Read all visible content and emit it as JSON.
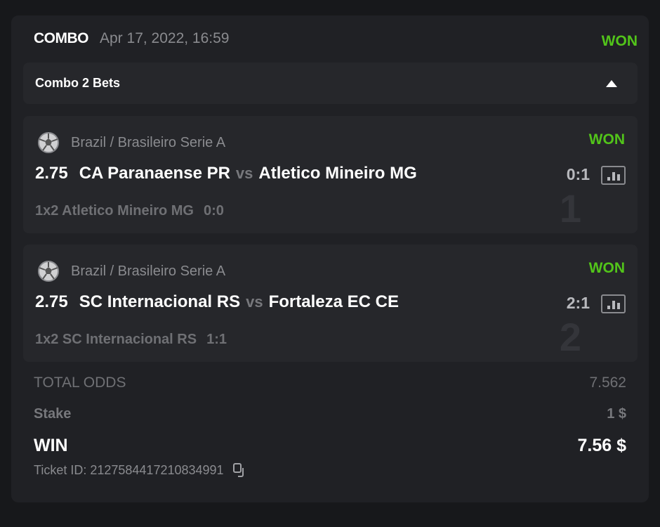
{
  "header": {
    "type": "COMBO",
    "date": "Apr 17, 2022, 16:59",
    "status": "WON"
  },
  "combo_bar": {
    "label": "Combo 2 Bets"
  },
  "bets": [
    {
      "index": "1",
      "league": "Brazil / Brasileiro Serie A",
      "status": "WON",
      "odds": "2.75",
      "home": "CA Paranaense PR",
      "vs": "vs",
      "away": "Atletico Mineiro MG",
      "score": "0:1",
      "market": "1x2 Atletico Mineiro MG",
      "market_score": "0:0"
    },
    {
      "index": "2",
      "league": "Brazil / Brasileiro Serie A",
      "status": "WON",
      "odds": "2.75",
      "home": "SC Internacional RS",
      "vs": "vs",
      "away": "Fortaleza EC CE",
      "score": "2:1",
      "market": "1x2 SC Internacional RS",
      "market_score": "1:1"
    }
  ],
  "summary": {
    "total_odds_label": "TOTAL ODDS",
    "total_odds": "7.562",
    "stake_label": "Stake",
    "stake": "1 $",
    "win_label": "WIN",
    "win": "7.56 $",
    "ticket_id": "Ticket ID: 2127584417210834991"
  },
  "colors": {
    "won": "#52c41a",
    "background": "#17181b",
    "card": "#202125",
    "panel": "#26272b"
  }
}
